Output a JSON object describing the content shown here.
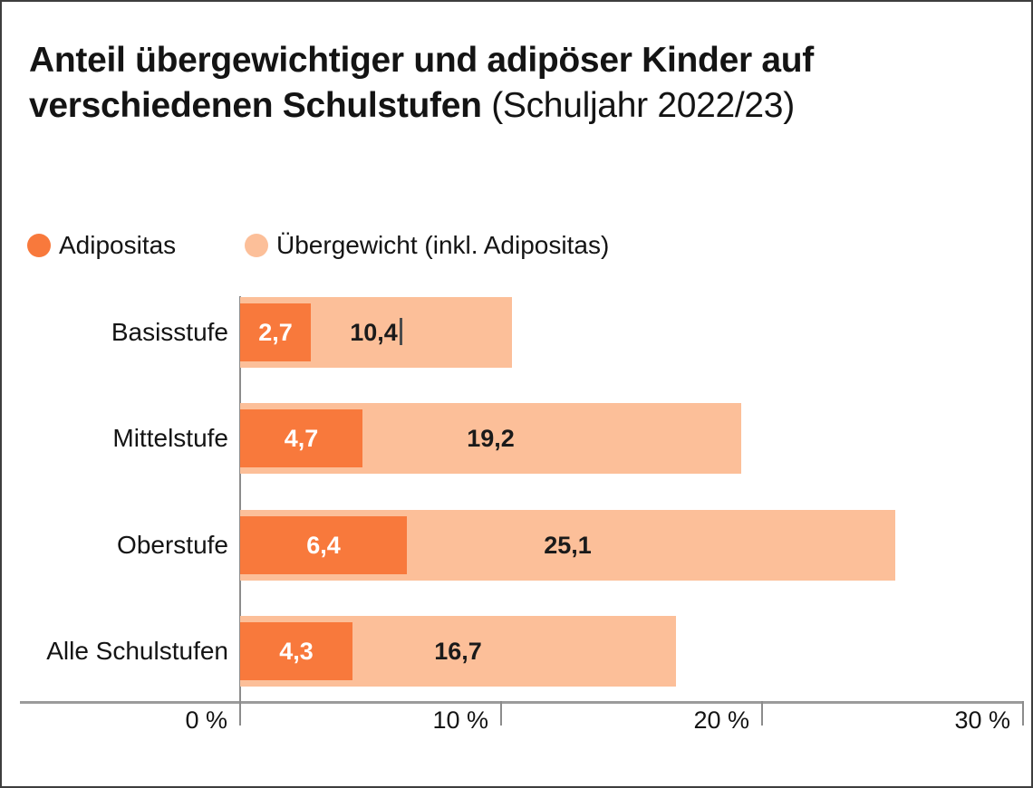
{
  "title": {
    "line1": "Anteil übergewichtiger und adipöser Kinder auf",
    "line2_bold": "verschiedenen Schulstufen",
    "line2_regular": "(Schuljahr 2022/23)"
  },
  "legend": {
    "items": [
      {
        "label": "Adipositas",
        "color": "#F8793C"
      },
      {
        "label": "Übergewicht (inkl. Adipositas)",
        "color": "#FCBF99"
      }
    ]
  },
  "chart_data": {
    "type": "bar",
    "orientation": "horizontal",
    "title": "Anteil übergewichtiger und adipöser Kinder auf verschiedenen Schulstufen (Schuljahr 2022/23)",
    "categories": [
      "Basisstufe",
      "Mittelstufe",
      "Oberstufe",
      "Alle Schulstufen"
    ],
    "series": [
      {
        "name": "Adipositas",
        "values": [
          2.7,
          4.7,
          6.4,
          4.3
        ],
        "display_labels": [
          "2,7",
          "4,7",
          "6,4",
          "4,3"
        ],
        "color": "#F8793C",
        "label_color": "#FFFFFF"
      },
      {
        "name": "Übergewicht (inkl. Adipositas)",
        "values": [
          10.4,
          19.2,
          25.1,
          16.7
        ],
        "display_labels": [
          "10,4",
          "19,2",
          "25,1",
          "16,7"
        ],
        "color": "#FCBF99",
        "label_color": "#1A1A1A"
      }
    ],
    "x_axis": {
      "xlim": [
        0,
        30
      ],
      "ticks": [
        0,
        10,
        20,
        30
      ],
      "tick_labels": [
        "0 %",
        "10 %",
        "20 %",
        "30 %"
      ],
      "unit": "%"
    },
    "legend_position": "top-left",
    "grid": false,
    "bar_style": "overlaid",
    "text_cursor_row": 0
  },
  "colors": {
    "axis_line": "#9B9B9B",
    "tick": "#8C8C8C",
    "y_axis_line": "#8C8C8C",
    "text": "#141414",
    "frame_border": "#3E3E3E",
    "background": "#FFFFFF",
    "text_cursor": "#4B4B4B"
  }
}
